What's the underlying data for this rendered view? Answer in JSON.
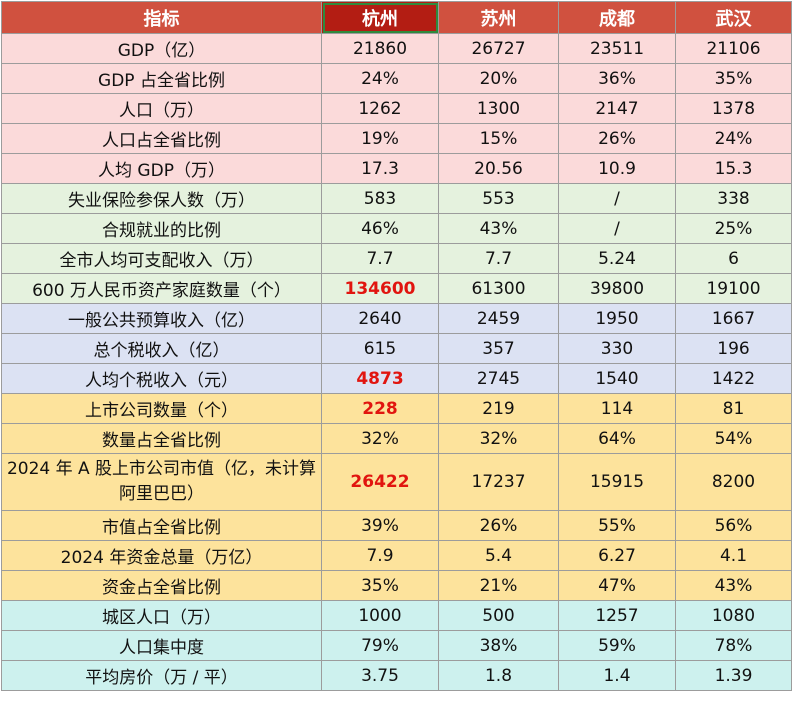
{
  "table": {
    "headers": [
      "指标",
      "杭州",
      "苏州",
      "成都",
      "武汉"
    ],
    "colors": {
      "header_bg": "#d0513f",
      "header_highlight_bg": "#b31d13",
      "header_highlight_border": "#2f8a3d",
      "emphasis_text": "#e1150f",
      "group_pink": "#fbdada",
      "group_green": "#e5f2de",
      "group_blue": "#dce2f3",
      "group_yellow": "#fde39c",
      "group_cyan": "#cdf1ee"
    },
    "rows": [
      {
        "group": "pink",
        "label": "GDP（亿）",
        "values": [
          "21860",
          "26727",
          "23511",
          "21106"
        ],
        "emphasis": []
      },
      {
        "group": "pink",
        "label": "GDP 占全省比例",
        "values": [
          "24%",
          "20%",
          "36%",
          "35%"
        ],
        "emphasis": []
      },
      {
        "group": "pink",
        "label": "人口（万）",
        "values": [
          "1262",
          "1300",
          "2147",
          "1378"
        ],
        "emphasis": []
      },
      {
        "group": "pink",
        "label": "人口占全省比例",
        "values": [
          "19%",
          "15%",
          "26%",
          "24%"
        ],
        "emphasis": []
      },
      {
        "group": "pink",
        "label": "人均 GDP（万）",
        "values": [
          "17.3",
          "20.56",
          "10.9",
          "15.3"
        ],
        "emphasis": []
      },
      {
        "group": "green",
        "label": "失业保险参保人数（万）",
        "values": [
          "583",
          "553",
          "/",
          "338"
        ],
        "emphasis": []
      },
      {
        "group": "green",
        "label": "合规就业的比例",
        "values": [
          "46%",
          "43%",
          "/",
          "25%"
        ],
        "emphasis": []
      },
      {
        "group": "green",
        "label": "全市人均可支配收入（万）",
        "values": [
          "7.7",
          "7.7",
          "5.24",
          "6"
        ],
        "emphasis": []
      },
      {
        "group": "green",
        "label": "600 万人民币资产家庭数量（个）",
        "values": [
          "134600",
          "61300",
          "39800",
          "19100"
        ],
        "emphasis": [
          0
        ]
      },
      {
        "group": "blue",
        "label": "一般公共预算收入（亿）",
        "values": [
          "2640",
          "2459",
          "1950",
          "1667"
        ],
        "emphasis": []
      },
      {
        "group": "blue",
        "label": "总个税收入（亿）",
        "values": [
          "615",
          "357",
          "330",
          "196"
        ],
        "emphasis": []
      },
      {
        "group": "blue",
        "label": "人均个税收入（元）",
        "values": [
          "4873",
          "2745",
          "1540",
          "1422"
        ],
        "emphasis": [
          0
        ]
      },
      {
        "group": "yellow",
        "label": "上市公司数量（个）",
        "values": [
          "228",
          "219",
          "114",
          "81"
        ],
        "emphasis": [
          0
        ]
      },
      {
        "group": "yellow",
        "label": "数量占全省比例",
        "values": [
          "32%",
          "32%",
          "64%",
          "54%"
        ],
        "emphasis": []
      },
      {
        "group": "yellow",
        "label": "2024 年 A 股上市公司市值（亿，未计算阿里巴巴）",
        "values": [
          "26422",
          "17237",
          "15915",
          "8200"
        ],
        "emphasis": [
          0
        ],
        "tall": true
      },
      {
        "group": "yellow",
        "label": "市值占全省比例",
        "values": [
          "39%",
          "26%",
          "55%",
          "56%"
        ],
        "emphasis": []
      },
      {
        "group": "yellow",
        "label": "2024 年资金总量（万亿）",
        "values": [
          "7.9",
          "5.4",
          "6.27",
          "4.1"
        ],
        "emphasis": []
      },
      {
        "group": "yellow",
        "label": "资金占全省比例",
        "values": [
          "35%",
          "21%",
          "47%",
          "43%"
        ],
        "emphasis": []
      },
      {
        "group": "cyan",
        "label": "城区人口（万）",
        "values": [
          "1000",
          "500",
          "1257",
          "1080"
        ],
        "emphasis": []
      },
      {
        "group": "cyan",
        "label": "人口集中度",
        "values": [
          "79%",
          "38%",
          "59%",
          "78%"
        ],
        "emphasis": []
      },
      {
        "group": "cyan",
        "label": "平均房价（万 / 平）",
        "values": [
          "3.75",
          "1.8",
          "1.4",
          "1.39"
        ],
        "emphasis": []
      }
    ]
  }
}
